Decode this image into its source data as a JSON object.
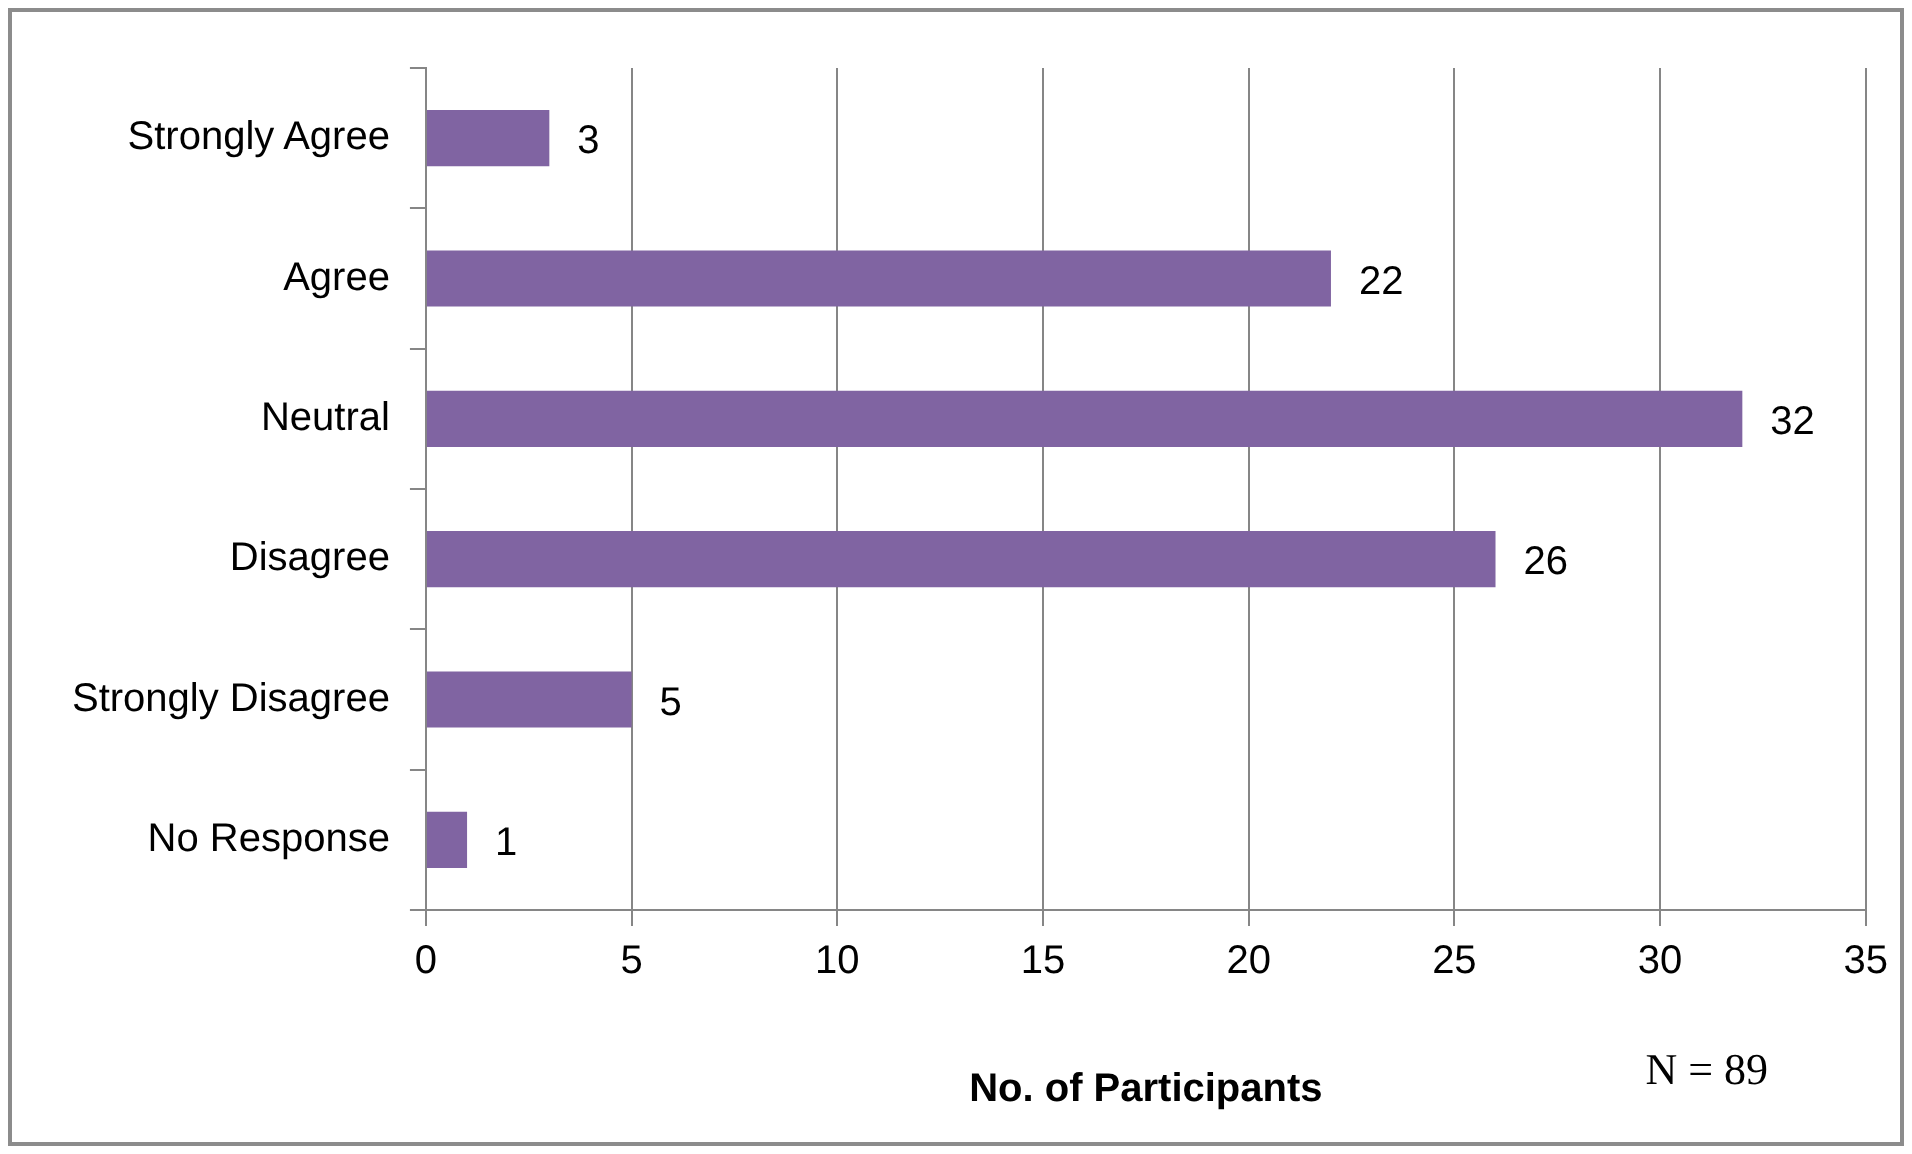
{
  "chart_data": {
    "type": "bar",
    "orientation": "horizontal",
    "categories": [
      "Strongly Agree",
      "Agree",
      "Neutral",
      "Disagree",
      "Strongly Disagree",
      "No Response"
    ],
    "values": [
      3,
      22,
      32,
      26,
      5,
      1
    ],
    "color": "#8064a2",
    "xlim": [
      0,
      35
    ],
    "xticks": [
      0,
      5,
      10,
      15,
      20,
      25,
      30,
      35
    ],
    "grid": "x",
    "legend": false,
    "data_labels": true,
    "xlabel": "No. of Participants",
    "annotations": [
      "N = 89"
    ]
  }
}
